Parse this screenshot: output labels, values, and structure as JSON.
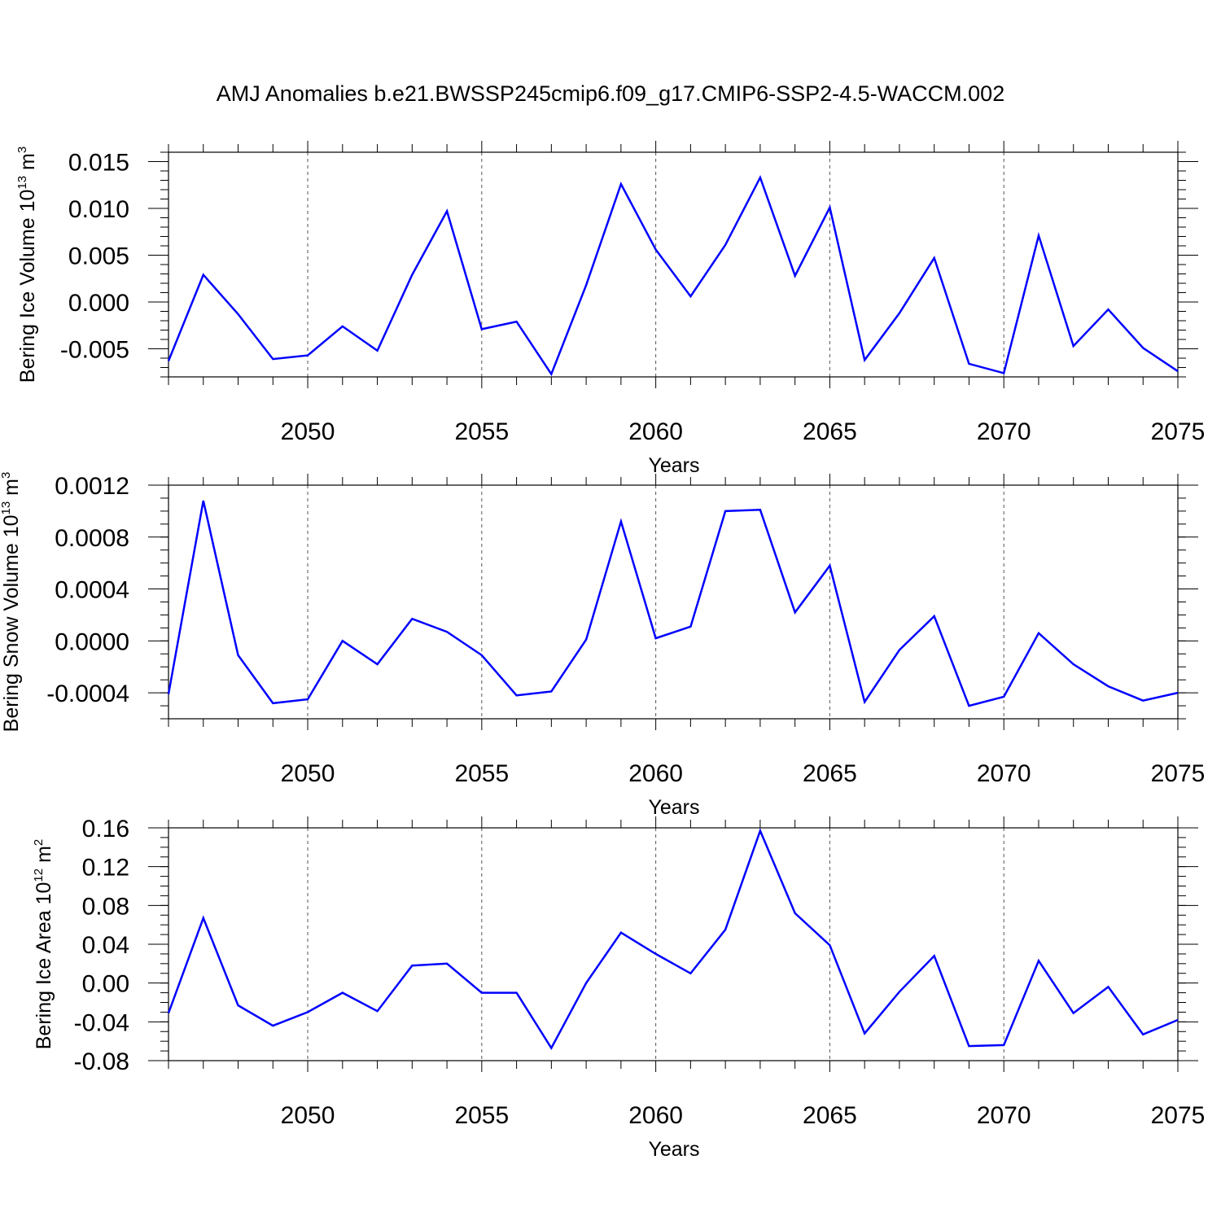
{
  "title": "AMJ Anomalies b.e21.BWSSP245cmip6.f09_g17.CMIP6-SSP2-4.5-WACCM.002",
  "line_color": "#0000ff",
  "chart_data": [
    {
      "type": "line",
      "ylabel": {
        "pre": "Bering Ice Volume 10",
        "exp": "13",
        "mid": " m",
        "unit_exp": "3"
      },
      "xlabel": "Years",
      "xlim": [
        2046,
        2075
      ],
      "ylim": [
        -0.008,
        0.016
      ],
      "xticks": [
        2050,
        2055,
        2060,
        2065,
        2070,
        2075
      ],
      "xtick_labels": [
        "2050",
        "2055",
        "2060",
        "2065",
        "2070",
        "2075"
      ],
      "yticks": [
        -0.005,
        0,
        0.005,
        0.01,
        0.015
      ],
      "ytick_labels": [
        "-0.005",
        "0.000",
        "0.005",
        "0.010",
        "0.015"
      ],
      "yminor_step": 0.001,
      "grid": "vertical-dashed",
      "x": [
        2046,
        2047,
        2048,
        2049,
        2050,
        2051,
        2052,
        2053,
        2054,
        2055,
        2056,
        2057,
        2058,
        2059,
        2060,
        2061,
        2062,
        2063,
        2064,
        2065,
        2066,
        2067,
        2068,
        2069,
        2070,
        2071,
        2072,
        2073,
        2074,
        2075
      ],
      "series": [
        {
          "values": [
            -0.0063,
            0.0029,
            -0.0013,
            -0.0061,
            -0.0057,
            -0.0026,
            -0.0052,
            0.0029,
            0.0097,
            -0.0029,
            -0.0021,
            -0.0077,
            0.0018,
            0.0126,
            0.0056,
            0.0006,
            0.0061,
            0.0133,
            0.0028,
            0.0101,
            -0.0062,
            -0.0012,
            0.0047,
            -0.0066,
            -0.0076,
            0.0071,
            -0.0047,
            -0.0008,
            -0.0049,
            -0.0074
          ]
        }
      ]
    },
    {
      "type": "line",
      "ylabel": {
        "pre": "Bering Snow Volume 10",
        "exp": "13",
        "mid": " m",
        "unit_exp": "3"
      },
      "xlabel": "Years",
      "xlim": [
        2046,
        2075
      ],
      "ylim": [
        -0.0006,
        0.0012
      ],
      "xticks": [
        2050,
        2055,
        2060,
        2065,
        2070,
        2075
      ],
      "xtick_labels": [
        "2050",
        "2055",
        "2060",
        "2065",
        "2070",
        "2075"
      ],
      "yticks": [
        -0.0004,
        0,
        0.0004,
        0.0008,
        0.0012
      ],
      "ytick_labels": [
        "-0.0004",
        "0.0000",
        "0.0004",
        "0.0008",
        "0.0012"
      ],
      "yminor_step": 0.0001,
      "grid": "vertical-dashed",
      "x": [
        2046,
        2047,
        2048,
        2049,
        2050,
        2051,
        2052,
        2053,
        2054,
        2055,
        2056,
        2057,
        2058,
        2059,
        2060,
        2061,
        2062,
        2063,
        2064,
        2065,
        2066,
        2067,
        2068,
        2069,
        2070,
        2071,
        2072,
        2073,
        2074,
        2075
      ],
      "series": [
        {
          "values": [
            -0.00041,
            0.00108,
            -0.00011,
            -0.00048,
            -0.00045,
            0.0,
            -0.00018,
            0.00017,
            7e-05,
            -0.00011,
            -0.00042,
            -0.00039,
            1e-05,
            0.00092,
            2e-05,
            0.00011,
            0.001,
            0.00101,
            0.00022,
            0.00058,
            -0.00047,
            -7e-05,
            0.00019,
            -0.0005,
            -0.00043,
            6e-05,
            -0.00018,
            -0.00035,
            -0.00046,
            -0.0004
          ]
        }
      ]
    },
    {
      "type": "line",
      "ylabel": {
        "pre": "Bering Ice Area 10",
        "exp": "12",
        "mid": " m",
        "unit_exp": "2"
      },
      "xlabel": "Years",
      "xlim": [
        2046,
        2075
      ],
      "ylim": [
        -0.08,
        0.16
      ],
      "xticks": [
        2050,
        2055,
        2060,
        2065,
        2070,
        2075
      ],
      "xtick_labels": [
        "2050",
        "2055",
        "2060",
        "2065",
        "2070",
        "2075"
      ],
      "yticks": [
        -0.08,
        -0.04,
        0,
        0.04,
        0.08,
        0.12,
        0.16
      ],
      "ytick_labels": [
        "-0.08",
        "-0.04",
        "0.00",
        "0.04",
        "0.08",
        "0.12",
        "0.16"
      ],
      "yminor_step": 0.01,
      "grid": "vertical-dashed",
      "x": [
        2046,
        2047,
        2048,
        2049,
        2050,
        2051,
        2052,
        2053,
        2054,
        2055,
        2056,
        2057,
        2058,
        2059,
        2060,
        2061,
        2062,
        2063,
        2064,
        2065,
        2066,
        2067,
        2068,
        2069,
        2070,
        2071,
        2072,
        2073,
        2074,
        2075
      ],
      "series": [
        {
          "values": [
            -0.031,
            0.067,
            -0.023,
            -0.044,
            -0.03,
            -0.01,
            -0.029,
            0.018,
            0.02,
            -0.01,
            -0.01,
            -0.067,
            0.0,
            0.052,
            0.03,
            0.01,
            0.055,
            0.157,
            0.072,
            0.039,
            -0.052,
            -0.009,
            0.028,
            -0.065,
            -0.064,
            0.023,
            -0.031,
            -0.004,
            -0.053,
            -0.038
          ]
        }
      ]
    }
  ]
}
